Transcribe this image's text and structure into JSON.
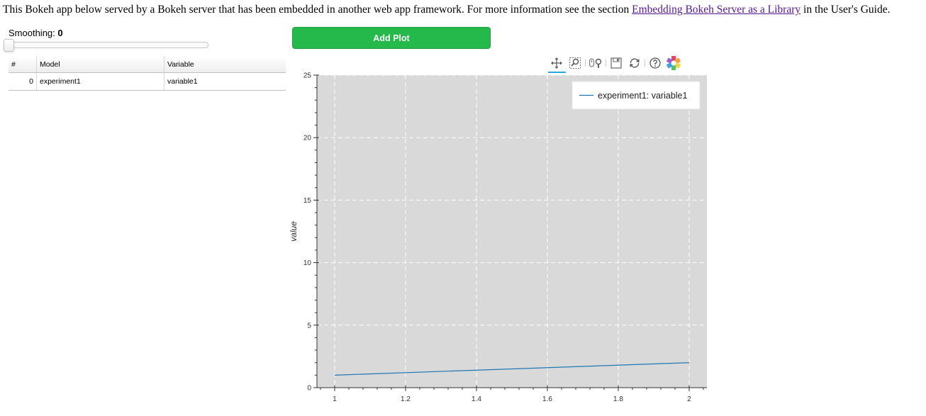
{
  "header": {
    "intro_text": "This Bokeh app below served by a Bokeh server that has been embedded in another web app framework. For more information see the section ",
    "link_text": "Embedding Bokeh Server as a Library",
    "intro_suffix": " in the User's Guide."
  },
  "slider": {
    "label": "Smoothing:",
    "value": "0",
    "fraction": 0
  },
  "add_plot_button": {
    "label": "Add Plot"
  },
  "table": {
    "columns": [
      "#",
      "Model",
      "Variable"
    ],
    "rows": [
      {
        "index": "0",
        "model": "experiment1",
        "variable": "variable1"
      }
    ]
  },
  "toolbar": {
    "tools": [
      "pan-icon",
      "box-zoom-icon",
      "wheel-zoom-icon",
      "save-icon",
      "reset-icon",
      "help-icon",
      "bokeh-logo-icon"
    ],
    "active_tool": "pan-icon"
  },
  "colors": {
    "button_green": "#25b84b",
    "plot_background": "#d9d9d9",
    "line": "#1f77b4",
    "link": "#551a8b"
  },
  "chart_data": {
    "type": "line",
    "ylabel": "value",
    "xlim": [
      0.95,
      2.05
    ],
    "ylim": [
      0,
      25
    ],
    "xticks": [
      1,
      1.2,
      1.4,
      1.6,
      1.8,
      2
    ],
    "xtick_labels": [
      "1",
      "1.2",
      "1.4",
      "1.6",
      "1.8",
      "2"
    ],
    "yticks": [
      0,
      5,
      10,
      15,
      20,
      25
    ],
    "ytick_labels": [
      "0",
      "5",
      "10",
      "15",
      "20",
      "25"
    ],
    "grid": true,
    "legend_position": "top-right",
    "series": [
      {
        "name": "experiment1: variable1",
        "x": [
          1,
          2
        ],
        "y": [
          1,
          2
        ],
        "color": "#1f77b4"
      }
    ]
  }
}
